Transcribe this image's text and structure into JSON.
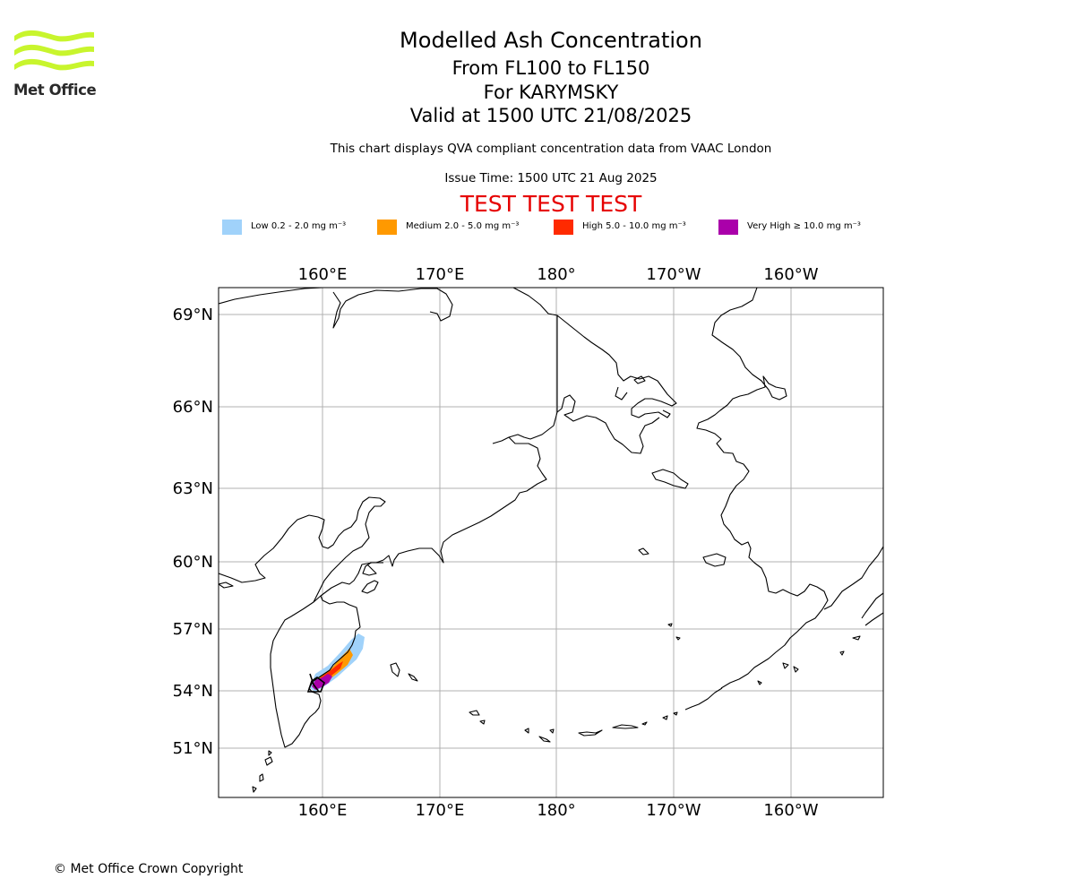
{
  "logo": {
    "text": "Met Office",
    "color": "#c8f52d"
  },
  "title": {
    "main": "Modelled Ash Concentration",
    "levels": "From FL100 to FL150",
    "volcano": "For KARYMSKY",
    "valid": "Valid at 1500 UTC 21/08/2025",
    "info": "This chart displays QVA compliant concentration data from VAAC London",
    "issue": "Issue Time: 1500 UTC 21 Aug 2025",
    "test": "TEST TEST TEST"
  },
  "legend": [
    {
      "label": "Low 0.2 - 2.0 mg m⁻³",
      "color": "#a0d2fa"
    },
    {
      "label": "Medium 2.0 - 5.0 mg m⁻³",
      "color": "#ff9900"
    },
    {
      "label": "High 5.0 - 10.0 mg m⁻³",
      "color": "#ff2a00"
    },
    {
      "label": "Very High ≥ 10.0 mg m⁻³",
      "color": "#aa00aa"
    }
  ],
  "map": {
    "lon_labels": [
      "160°E",
      "170°E",
      "180°",
      "170°W",
      "160°W"
    ],
    "lat_labels": [
      "69°N",
      "66°N",
      "63°N",
      "60°N",
      "57°N",
      "54°N",
      "51°N"
    ],
    "grid": true,
    "coastline_color": "#000000",
    "gridline_color": "#b0b0b0"
  },
  "footer": "© Met Office Crown Copyright"
}
